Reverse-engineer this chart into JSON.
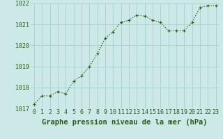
{
  "x": [
    0,
    1,
    2,
    3,
    4,
    5,
    6,
    7,
    8,
    9,
    10,
    11,
    12,
    13,
    14,
    15,
    16,
    17,
    18,
    19,
    20,
    21,
    22,
    23
  ],
  "y": [
    1017.2,
    1017.6,
    1017.6,
    1017.8,
    1017.7,
    1018.3,
    1018.55,
    1019.0,
    1019.6,
    1020.35,
    1020.65,
    1021.1,
    1021.2,
    1021.45,
    1021.4,
    1021.2,
    1021.1,
    1020.7,
    1020.7,
    1020.7,
    1021.1,
    1021.8,
    1021.9,
    1021.9
  ],
  "line_color": "#2d5a1b",
  "marker": "+",
  "bg_color": "#cce9e7",
  "grid_color": "#aed4d1",
  "xlabel": "Graphe pression niveau de la mer (hPa)",
  "xlabel_fontsize": 7.5,
  "ylim": [
    1017,
    1022
  ],
  "yticks": [
    1017,
    1018,
    1019,
    1020,
    1021,
    1022
  ],
  "xticks": [
    0,
    1,
    2,
    3,
    4,
    5,
    6,
    7,
    8,
    9,
    10,
    11,
    12,
    13,
    14,
    15,
    16,
    17,
    18,
    19,
    20,
    21,
    22,
    23
  ],
  "tick_fontsize": 6.0,
  "tick_color": "#2d5a1b",
  "xlabel_color": "#2d5a1b"
}
